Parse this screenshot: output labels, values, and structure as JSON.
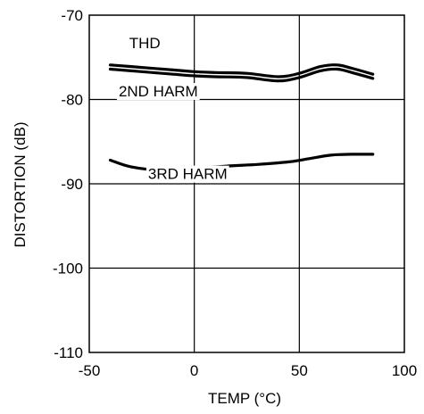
{
  "chart_data": {
    "type": "line",
    "xlabel": "TEMP (°C)",
    "ylabel": "DISTORTION (dB)",
    "xlim": [
      -50,
      100
    ],
    "ylim": [
      -110,
      -70
    ],
    "x_ticks": [
      -50,
      0,
      50,
      100
    ],
    "y_ticks": [
      -70,
      -80,
      -90,
      -100,
      -110
    ],
    "grid": true,
    "series": [
      {
        "name": "THD",
        "x": [
          -40,
          -25,
          -10,
          0,
          10,
          25,
          40,
          50,
          60,
          68,
          75,
          85
        ],
        "y": [
          -75.9,
          -76.2,
          -76.5,
          -76.7,
          -76.8,
          -76.9,
          -77.3,
          -76.9,
          -76.1,
          -75.9,
          -76.3,
          -77.0
        ]
      },
      {
        "name": "2ND HARM",
        "x": [
          -40,
          -25,
          -10,
          0,
          10,
          25,
          40,
          50,
          60,
          68,
          75,
          85
        ],
        "y": [
          -76.4,
          -76.7,
          -77.0,
          -77.2,
          -77.3,
          -77.4,
          -77.8,
          -77.4,
          -76.6,
          -76.4,
          -76.8,
          -77.5
        ]
      },
      {
        "name": "3RD HARM",
        "x": [
          -40,
          -30,
          -15,
          0,
          15,
          30,
          45,
          55,
          65,
          75,
          85
        ],
        "y": [
          -87.2,
          -88.0,
          -88.4,
          -88.2,
          -87.9,
          -87.7,
          -87.4,
          -87.0,
          -86.6,
          -86.5,
          -86.5
        ]
      }
    ],
    "annotations": [
      {
        "text": "THD",
        "x": -31,
        "y": -73.3
      },
      {
        "text": "2ND HARM",
        "x": -36,
        "y": -79.0
      },
      {
        "text": "3RD HARM",
        "x": -22,
        "y": -88.8
      }
    ]
  }
}
